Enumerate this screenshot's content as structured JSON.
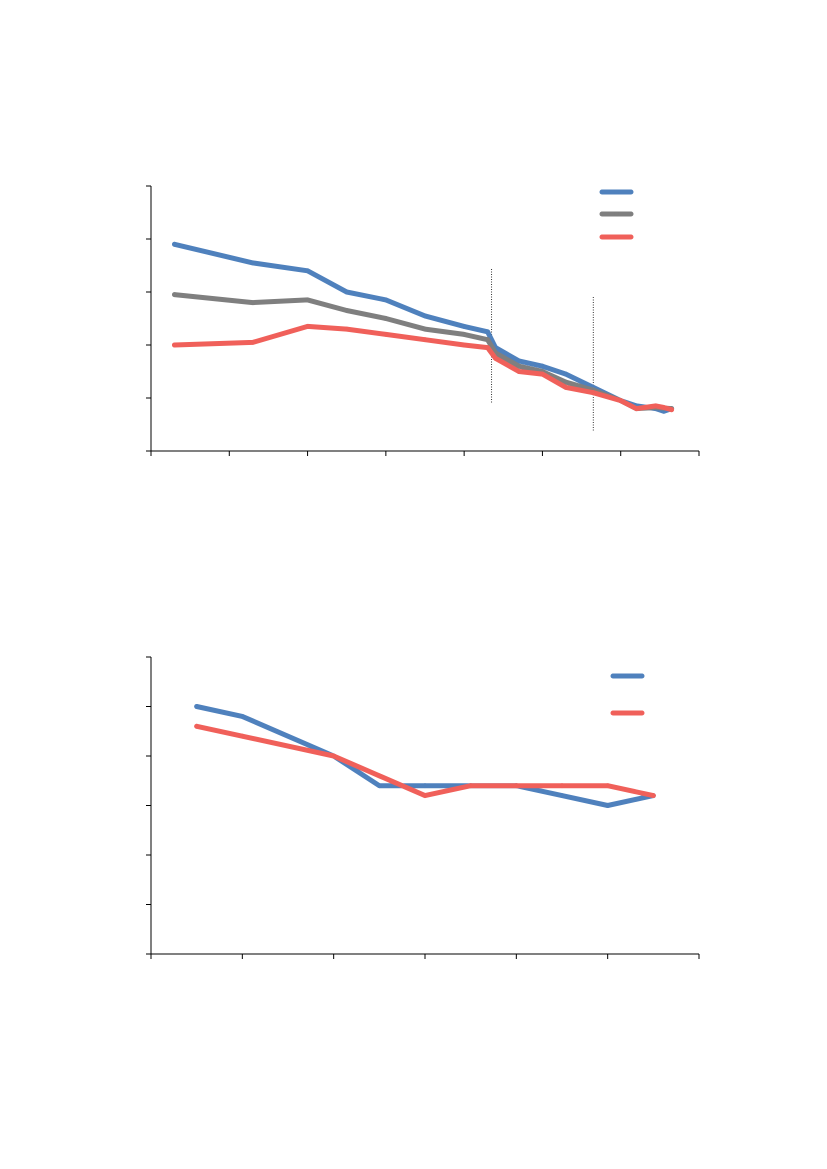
{
  "chart_data": [
    {
      "type": "line",
      "colors": [
        "#4f81bd",
        "#7f7f7f",
        "#f0605a"
      ],
      "xlim": [
        0,
        7
      ],
      "ylim": [
        0,
        5
      ],
      "grid": false,
      "legend_position": "top-right",
      "vertical_markers": [
        4.35,
        5.65
      ],
      "series": [
        {
          "color": "#4f81bd",
          "points": [
            [
              0.3,
              3.9
            ],
            [
              1.3,
              3.55
            ],
            [
              2.0,
              3.4
            ],
            [
              2.5,
              3.0
            ],
            [
              3.0,
              2.85
            ],
            [
              3.5,
              2.55
            ],
            [
              4.0,
              2.35
            ],
            [
              4.3,
              2.25
            ],
            [
              4.4,
              1.95
            ],
            [
              4.7,
              1.7
            ],
            [
              5.0,
              1.6
            ],
            [
              5.3,
              1.45
            ],
            [
              5.65,
              1.2
            ],
            [
              6.0,
              0.95
            ],
            [
              6.2,
              0.85
            ],
            [
              6.45,
              0.8
            ],
            [
              6.55,
              0.75
            ],
            [
              6.65,
              0.8
            ]
          ]
        },
        {
          "color": "#7f7f7f",
          "points": [
            [
              0.3,
              2.95
            ],
            [
              1.3,
              2.8
            ],
            [
              2.0,
              2.85
            ],
            [
              2.5,
              2.65
            ],
            [
              3.0,
              2.5
            ],
            [
              3.5,
              2.3
            ],
            [
              4.0,
              2.2
            ],
            [
              4.3,
              2.1
            ],
            [
              4.4,
              1.85
            ],
            [
              4.7,
              1.6
            ],
            [
              5.0,
              1.5
            ],
            [
              5.3,
              1.3
            ],
            [
              5.65,
              1.15
            ],
            [
              6.0,
              0.95
            ],
            [
              6.2,
              0.8
            ],
            [
              6.45,
              0.82
            ],
            [
              6.65,
              0.8
            ]
          ]
        },
        {
          "color": "#f0605a",
          "points": [
            [
              0.3,
              2.0
            ],
            [
              1.3,
              2.05
            ],
            [
              2.0,
              2.35
            ],
            [
              2.5,
              2.3
            ],
            [
              3.0,
              2.2
            ],
            [
              3.5,
              2.1
            ],
            [
              4.0,
              2.0
            ],
            [
              4.3,
              1.95
            ],
            [
              4.4,
              1.75
            ],
            [
              4.7,
              1.5
            ],
            [
              5.0,
              1.45
            ],
            [
              5.3,
              1.2
            ],
            [
              5.65,
              1.1
            ],
            [
              6.0,
              0.95
            ],
            [
              6.2,
              0.8
            ],
            [
              6.45,
              0.85
            ],
            [
              6.55,
              0.82
            ],
            [
              6.65,
              0.78
            ]
          ]
        }
      ]
    },
    {
      "type": "line",
      "colors": [
        "#4f81bd",
        "#f0605a"
      ],
      "xlim": [
        0,
        6
      ],
      "ylim": [
        0,
        6
      ],
      "grid": false,
      "legend_position": "top-right",
      "series": [
        {
          "color": "#4f81bd",
          "points": [
            [
              0.5,
              5.0
            ],
            [
              1.0,
              4.8
            ],
            [
              2.0,
              4.0
            ],
            [
              2.5,
              3.4
            ],
            [
              3.0,
              3.4
            ],
            [
              3.5,
              3.4
            ],
            [
              4.0,
              3.4
            ],
            [
              4.5,
              3.2
            ],
            [
              5.0,
              3.0
            ],
            [
              5.5,
              3.2
            ]
          ]
        },
        {
          "color": "#f0605a",
          "points": [
            [
              0.5,
              4.6
            ],
            [
              1.0,
              4.4
            ],
            [
              2.0,
              4.0
            ],
            [
              2.5,
              3.6
            ],
            [
              3.0,
              3.2
            ],
            [
              3.5,
              3.4
            ],
            [
              4.0,
              3.4
            ],
            [
              4.5,
              3.4
            ],
            [
              5.0,
              3.4
            ],
            [
              5.5,
              3.2
            ]
          ]
        }
      ]
    }
  ]
}
